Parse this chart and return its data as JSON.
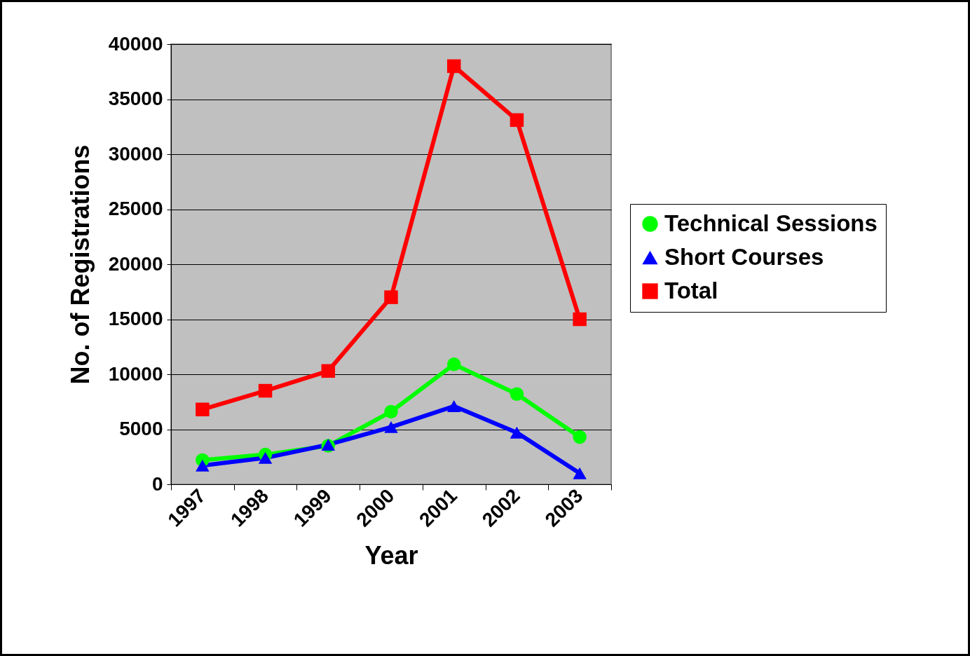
{
  "chart_data": {
    "type": "line",
    "xlabel": "Year",
    "ylabel": "No. of Registrations",
    "categories": [
      "1997",
      "1998",
      "1999",
      "2000",
      "2001",
      "2002",
      "2003"
    ],
    "series": [
      {
        "name": "Technical Sessions",
        "color": "#00ff00",
        "marker": "circle",
        "values": [
          2200,
          2700,
          3500,
          6600,
          10900,
          8200,
          4300
        ]
      },
      {
        "name": "Short Courses",
        "color": "#0000ff",
        "marker": "triangle",
        "values": [
          1700,
          2400,
          3600,
          5200,
          7100,
          4700,
          1000
        ]
      },
      {
        "name": "Total",
        "color": "#ff0000",
        "marker": "square",
        "values": [
          6800,
          8500,
          10300,
          17000,
          38000,
          33100,
          15000
        ]
      }
    ],
    "ylim": [
      0,
      40000
    ],
    "yticks": [
      0,
      5000,
      10000,
      15000,
      20000,
      25000,
      30000,
      35000,
      40000
    ],
    "grid": "y",
    "legend": "right",
    "line_style": "solid"
  }
}
